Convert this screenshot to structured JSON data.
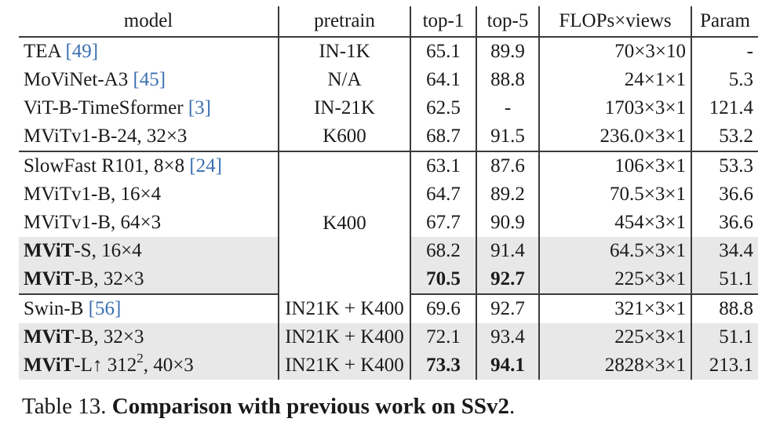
{
  "headers": {
    "model": "model",
    "pretrain": "pretrain",
    "top1": "top-1",
    "top5": "top-5",
    "flops": "FLOPs×views",
    "param": "Param"
  },
  "rows": [
    {
      "model": "TEA ",
      "ref": "[49]",
      "pretrain": "IN-1K",
      "top1": "65.1",
      "top5": "89.9",
      "flops": "70×3×10",
      "param": "-"
    },
    {
      "model": "MoViNet-A3 ",
      "ref": "[45]",
      "pretrain": "N/A",
      "top1": "64.1",
      "top5": "88.8",
      "flops": "24×1×1",
      "param": "5.3"
    },
    {
      "model": "ViT-B-TimeSformer ",
      "ref": "[3]",
      "pretrain": "IN-21K",
      "top1": "62.5",
      "top5": "-",
      "flops": "1703×3×1",
      "param": "121.4"
    },
    {
      "model": "MViTv1-B-24, 32×3",
      "pretrain": "K600",
      "top1": "68.7",
      "top5": "91.5",
      "flops": "236.0×3×1",
      "param": "53.2"
    },
    {
      "model": "SlowFast R101, 8×8 ",
      "ref": "[24]",
      "top1": "63.1",
      "top5": "87.6",
      "flops": "106×3×1",
      "param": "53.3"
    },
    {
      "model": "MViTv1-B, 16×4",
      "top1": "64.7",
      "top5": "89.2",
      "flops": "70.5×3×1",
      "param": "36.6"
    },
    {
      "model": "MViTv1-B, 64×3",
      "top1": "67.7",
      "top5": "90.9",
      "flops": "454×3×1",
      "param": "36.6"
    },
    {
      "model_bold": "MViT",
      "model": "-S, 16×4",
      "top1": "68.2",
      "top5": "91.4",
      "flops": "64.5×3×1",
      "param": "34.4"
    },
    {
      "model_bold": "MViT",
      "model": "-B, 32×3",
      "top1": "70.5",
      "top5": "92.7",
      "flops": "225×3×1",
      "param": "51.1"
    },
    {
      "model": "Swin-B ",
      "ref": "[56]",
      "pretrain": "IN21K + K400",
      "top1": "69.6",
      "top5": "92.7",
      "flops": "321×3×1",
      "param": "88.8"
    },
    {
      "model_bold": "MViT",
      "model": "-B, 32×3",
      "pretrain": "IN21K + K400",
      "top1": "72.1",
      "top5": "93.4",
      "flops": "225×3×1",
      "param": "51.1"
    },
    {
      "model_bold": "MViT",
      "model": "-L↑ 312",
      "sup": "2",
      "model_tail": ", 40×3",
      "pretrain": "IN21K + K400",
      "top1": "73.3",
      "top5": "94.1",
      "flops": "2828×3×1",
      "param": "213.1"
    }
  ],
  "group2_pretrain": "K400",
  "caption": {
    "prefix": "Table 13. ",
    "bold": "Comparison with previous work on SSv2",
    "suffix": "."
  },
  "colors": {
    "highlight_row": "#e8e8e8",
    "reference_link": "#3b6fb0"
  }
}
